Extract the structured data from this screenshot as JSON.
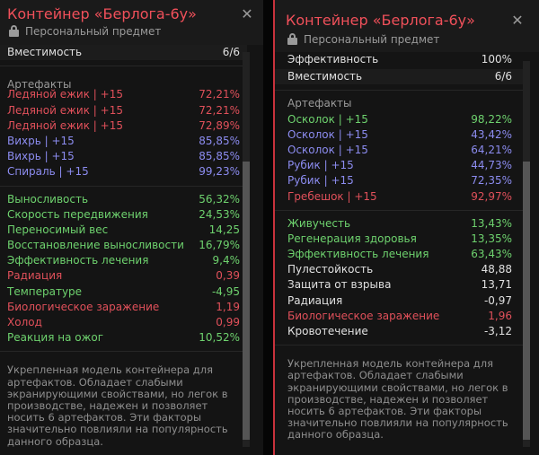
{
  "left": {
    "title": "Контейнер «Берлога-6у»",
    "subtitle": "Персональный предмет",
    "top_stats": [
      {
        "label": "Вместимость",
        "value": "6/6"
      }
    ],
    "artifacts_heading": "Артефакты",
    "artifacts": [
      {
        "label": "Ледяной ежик | +15",
        "value": "72,21%",
        "color": "#e0505a"
      },
      {
        "label": "Ледяной ежик | +15",
        "value": "72,21%",
        "color": "#e0505a"
      },
      {
        "label": "Ледяной ежик | +15",
        "value": "72,89%",
        "color": "#e0505a"
      },
      {
        "label": "Вихрь | +15",
        "value": "85,85%",
        "color": "#8c8cf0"
      },
      {
        "label": "Вихрь | +15",
        "value": "85,85%",
        "color": "#8c8cf0"
      },
      {
        "label": "Спираль | +15",
        "value": "99,23%",
        "color": "#8c8cf0"
      }
    ],
    "stats": [
      {
        "label": "Выносливость",
        "value": "56,32%",
        "color": "#6ed26e"
      },
      {
        "label": "Скорость передвижения",
        "value": "24,53%",
        "color": "#6ed26e"
      },
      {
        "label": "Переносимый вес",
        "value": "14,25",
        "color": "#6ed26e"
      },
      {
        "label": "Восстановление выносливости",
        "value": "16,79%",
        "color": "#6ed26e"
      },
      {
        "label": "Эффективность лечения",
        "value": "9,4%",
        "color": "#6ed26e"
      },
      {
        "label": "Радиация",
        "value": "0,39",
        "color": "#e0505a"
      },
      {
        "label": "Температуре",
        "value": "-4,95",
        "color": "#6ed26e"
      },
      {
        "label": "Биологическое заражение",
        "value": "1,19",
        "color": "#e0505a"
      },
      {
        "label": "Холод",
        "value": "0,99",
        "color": "#e0505a"
      },
      {
        "label": "Реакция на ожог",
        "value": "10,52%",
        "color": "#6ed26e"
      }
    ],
    "description": "Укрепленная модель контейнера для артефактов. Обладает слабыми экранирующими свойствами, но легок в производстве, надежен и позволяет носить 6 артефактов. Эти факторы значительно повлияли на популярность данного образца.",
    "icons": {
      "lock": "lock-icon",
      "close": "close-icon"
    }
  },
  "right": {
    "title": "Контейнер «Берлога-6у»",
    "subtitle": "Персональный предмет",
    "accent_color": "#c8323c",
    "top_stats": [
      {
        "label": "Эффективность",
        "value": "100%"
      },
      {
        "label": "Вместимость",
        "value": "6/6"
      }
    ],
    "artifacts_heading": "Артефакты",
    "artifacts": [
      {
        "label": "Осколок | +15",
        "value": "98,22%",
        "color": "#6ed26e"
      },
      {
        "label": "Осколок | +15",
        "value": "43,42%",
        "color": "#8c8cf0"
      },
      {
        "label": "Осколок | +15",
        "value": "64,21%",
        "color": "#8c8cf0"
      },
      {
        "label": "Рубик | +15",
        "value": "44,73%",
        "color": "#8c8cf0"
      },
      {
        "label": "Рубик | +15",
        "value": "72,35%",
        "color": "#8c8cf0"
      },
      {
        "label": "Гребешок | +15",
        "value": "92,97%",
        "color": "#e0505a"
      }
    ],
    "stats": [
      {
        "label": "Живучесть",
        "value": "13,43%",
        "color": "#6ed26e"
      },
      {
        "label": "Регенерация здоровья",
        "value": "13,35%",
        "color": "#6ed26e"
      },
      {
        "label": "Эффективность лечения",
        "value": "63,43%",
        "color": "#6ed26e"
      },
      {
        "label": "Пулестойкость",
        "value": "48,88",
        "color": "#e0e0e0"
      },
      {
        "label": "Защита от взрыва",
        "value": "13,71",
        "color": "#e0e0e0"
      },
      {
        "label": "Радиация",
        "value": "-0,97",
        "color": "#e0e0e0"
      },
      {
        "label": "Биологическое заражение",
        "value": "1,96",
        "color": "#e0505a"
      },
      {
        "label": "Кровотечение",
        "value": "-3,12",
        "color": "#e0e0e0"
      }
    ],
    "description": "Укрепленная модель контейнера для артефактов. Обладает слабыми экранирующими свойствами, но легок в производстве, надежен и позволяет носить 6 артефактов. Эти факторы значительно повлияли на популярность данного образца.",
    "icons": {
      "lock": "lock-icon",
      "close": "close-icon"
    }
  }
}
